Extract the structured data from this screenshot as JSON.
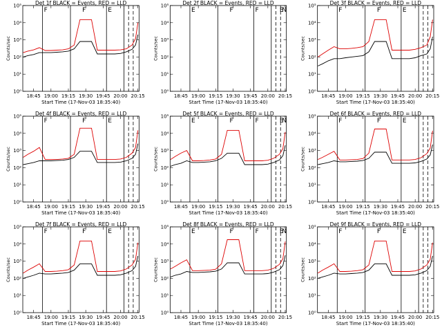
{
  "page": {
    "rows": 3,
    "cols": 3
  },
  "colors": {
    "events": "#000000",
    "lld": "#dd0000",
    "axis": "#000000",
    "background": "#ffffff"
  },
  "chart_data": [
    {
      "type": "line",
      "title": "Det 1f BLACK = Events, RED = LLD",
      "xlabel": "Start Time (17-Nov-03 18:35:40)",
      "ylabel": "Counts/sec",
      "yscale": "log",
      "ylim": [
        1,
        100000
      ],
      "ytick_labels": [
        "10⁰",
        "10¹",
        "10²",
        "10³",
        "10⁴",
        "10⁵"
      ],
      "xlim": [
        "18:35:40",
        "20:16:00"
      ],
      "xtick_labels": [
        "18:45",
        "19:00",
        "19:15",
        "19:30",
        "19:45",
        "20:00",
        "20:15"
      ],
      "markers": [
        "F",
        "F",
        "E"
      ],
      "x": [
        "18:36",
        "18:40",
        "18:45",
        "18:50",
        "18:55",
        "19:00",
        "19:05",
        "19:10",
        "19:15",
        "19:20",
        "19:25",
        "19:30",
        "19:35",
        "19:40",
        "19:45",
        "19:50",
        "19:55",
        "20:00",
        "20:05",
        "20:10",
        "20:13",
        "20:15"
      ],
      "series": [
        {
          "name": "Events",
          "values": [
            100,
            120,
            140,
            180,
            180,
            180,
            190,
            200,
            220,
            300,
            800,
            800,
            800,
            150,
            150,
            150,
            150,
            160,
            200,
            280,
            500,
            2000
          ]
        },
        {
          "name": "LLD",
          "values": [
            180,
            220,
            260,
            350,
            240,
            240,
            250,
            260,
            300,
            500,
            15000,
            15000,
            15000,
            250,
            250,
            250,
            250,
            260,
            300,
            500,
            1200,
            10000
          ]
        }
      ]
    },
    {
      "type": "line",
      "title": "Det 2f BLACK = Events, RED = LLD",
      "xlabel": "Start Time (17-Nov-03 18:35:40)",
      "ylabel": "Counts/sec",
      "yscale": "log",
      "ylim": [
        1,
        100000
      ],
      "ytick_labels": [
        "10⁰",
        "10¹",
        "10²",
        "10³",
        "10⁴",
        "10⁵"
      ],
      "xlim": [
        "18:35:40",
        "20:16:00"
      ],
      "xtick_labels": [
        "18:45",
        "19:00",
        "19:15",
        "19:30",
        "19:45",
        "20:00",
        "20:15"
      ],
      "markers": [
        "E",
        "F",
        "F",
        "E",
        "N"
      ],
      "x": [],
      "series": []
    },
    {
      "type": "line",
      "title": "Det 3f BLACK = Events, RED = LLD",
      "xlabel": "Start Time (17-Nov-03 18:35:40)",
      "ylabel": "Counts/sec",
      "yscale": "log",
      "ylim": [
        1,
        100000
      ],
      "ytick_labels": [
        "10⁰",
        "10¹",
        "10²",
        "10³",
        "10⁴",
        "10⁵"
      ],
      "xlim": [
        "18:35:40",
        "20:16:00"
      ],
      "xtick_labels": [
        "18:45",
        "19:00",
        "19:15",
        "19:30",
        "19:45",
        "20:00",
        "20:15"
      ],
      "markers": [
        "F",
        "F",
        "E"
      ],
      "x": [
        "18:36",
        "18:40",
        "18:45",
        "18:50",
        "18:55",
        "19:00",
        "19:05",
        "19:10",
        "19:15",
        "19:20",
        "19:25",
        "19:30",
        "19:35",
        "19:40",
        "19:45",
        "19:50",
        "19:55",
        "20:00",
        "20:05",
        "20:10",
        "20:13",
        "20:15"
      ],
      "series": [
        {
          "name": "Events",
          "values": [
            30,
            40,
            60,
            80,
            80,
            90,
            100,
            110,
            120,
            200,
            800,
            800,
            800,
            80,
            80,
            80,
            80,
            90,
            120,
            150,
            300,
            1500
          ]
        },
        {
          "name": "LLD",
          "values": [
            100,
            150,
            250,
            400,
            300,
            300,
            320,
            350,
            400,
            800,
            15000,
            15000,
            15000,
            250,
            250,
            250,
            250,
            280,
            350,
            500,
            1500,
            15000
          ]
        }
      ]
    },
    {
      "type": "line",
      "title": "Det 4f BLACK = Events, RED = LLD",
      "xlabel": "Start Time (17-Nov-03 18:35:40)",
      "ylabel": "Counts/sec",
      "yscale": "log",
      "ylim": [
        1,
        100000
      ],
      "ytick_labels": [
        "10⁰",
        "10¹",
        "10²",
        "10³",
        "10⁴",
        "10⁵"
      ],
      "xlim": [
        "18:35:40",
        "20:16:00"
      ],
      "xtick_labels": [
        "18:45",
        "19:00",
        "19:15",
        "19:30",
        "19:45",
        "20:00",
        "20:15"
      ],
      "markers": [
        "F",
        "F",
        "E"
      ],
      "x": [
        "18:36",
        "18:40",
        "18:45",
        "18:50",
        "18:55",
        "19:00",
        "19:05",
        "19:10",
        "19:15",
        "19:20",
        "19:25",
        "19:30",
        "19:35",
        "19:40",
        "19:45",
        "19:50",
        "19:55",
        "20:00",
        "20:05",
        "20:10",
        "20:13",
        "20:15"
      ],
      "series": [
        {
          "name": "Events",
          "values": [
            150,
            170,
            200,
            250,
            250,
            250,
            260,
            270,
            300,
            400,
            900,
            900,
            900,
            200,
            200,
            200,
            200,
            210,
            250,
            350,
            600,
            2500
          ]
        },
        {
          "name": "LLD",
          "values": [
            400,
            600,
            900,
            1500,
            300,
            300,
            300,
            320,
            350,
            600,
            20000,
            20000,
            20000,
            300,
            300,
            300,
            300,
            320,
            400,
            700,
            1500,
            15000
          ]
        }
      ]
    },
    {
      "type": "line",
      "title": "Det 5f BLACK = Events, RED = LLD",
      "xlabel": "Start Time (17-Nov-03 18:35:40)",
      "ylabel": "Counts/sec",
      "yscale": "log",
      "ylim": [
        1,
        100000
      ],
      "ytick_labels": [
        "10⁰",
        "10¹",
        "10²",
        "10³",
        "10⁴",
        "10⁵"
      ],
      "xlim": [
        "18:35:40",
        "20:16:00"
      ],
      "xtick_labels": [
        "18:45",
        "19:00",
        "19:15",
        "19:30",
        "19:45",
        "20:00",
        "20:15"
      ],
      "markers": [
        "E",
        "F",
        "F",
        "E",
        "N"
      ],
      "x": [
        "18:36",
        "18:40",
        "18:45",
        "18:50",
        "18:55",
        "19:00",
        "19:05",
        "19:10",
        "19:15",
        "19:20",
        "19:25",
        "19:30",
        "19:35",
        "19:40",
        "19:45",
        "19:50",
        "19:55",
        "20:00",
        "20:05",
        "20:10",
        "20:13",
        "20:15"
      ],
      "series": [
        {
          "name": "Events",
          "values": [
            120,
            150,
            180,
            250,
            200,
            200,
            210,
            220,
            250,
            350,
            700,
            700,
            700,
            150,
            150,
            150,
            150,
            160,
            200,
            280,
            500,
            2000
          ]
        },
        {
          "name": "LLD",
          "values": [
            300,
            450,
            700,
            1000,
            250,
            250,
            260,
            280,
            320,
            600,
            15000,
            15000,
            15000,
            250,
            250,
            250,
            250,
            270,
            350,
            600,
            1300,
            12000
          ]
        }
      ]
    },
    {
      "type": "line",
      "title": "Det 6f BLACK = Events, RED = LLD",
      "xlabel": "Start Time (17-Nov-03 18:35:40)",
      "ylabel": "Counts/sec",
      "yscale": "log",
      "ylim": [
        1,
        100000
      ],
      "ytick_labels": [
        "10⁰",
        "10¹",
        "10²",
        "10³",
        "10⁴",
        "10⁵"
      ],
      "xlim": [
        "18:35:40",
        "20:16:00"
      ],
      "xtick_labels": [
        "18:45",
        "19:00",
        "19:15",
        "19:30",
        "19:45",
        "20:00",
        "20:15"
      ],
      "markers": [
        "F",
        "F",
        "E"
      ],
      "x": [
        "18:36",
        "18:40",
        "18:45",
        "18:50",
        "18:55",
        "19:00",
        "19:05",
        "19:10",
        "19:15",
        "19:20",
        "19:25",
        "19:30",
        "19:35",
        "19:40",
        "19:45",
        "19:50",
        "19:55",
        "20:00",
        "20:05",
        "20:10",
        "20:13",
        "20:15"
      ],
      "series": [
        {
          "name": "Events",
          "values": [
            150,
            170,
            200,
            250,
            220,
            220,
            230,
            240,
            260,
            350,
            800,
            800,
            800,
            180,
            180,
            180,
            180,
            190,
            230,
            320,
            550,
            2200
          ]
        },
        {
          "name": "LLD",
          "values": [
            300,
            400,
            600,
            900,
            280,
            280,
            290,
            300,
            340,
            700,
            18000,
            18000,
            18000,
            280,
            280,
            280,
            280,
            300,
            380,
            650,
            1400,
            14000
          ]
        }
      ]
    },
    {
      "type": "line",
      "title": "Det 7f BLACK = Events, RED = LLD",
      "xlabel": "Start Time (17-Nov-03 18:35:40)",
      "ylabel": "Counts/sec",
      "yscale": "log",
      "ylim": [
        1,
        100000
      ],
      "ytick_labels": [
        "10⁰",
        "10¹",
        "10²",
        "10³",
        "10⁴",
        "10⁵"
      ],
      "xlim": [
        "18:35:40",
        "20:16:00"
      ],
      "xtick_labels": [
        "18:45",
        "19:00",
        "19:15",
        "19:30",
        "19:45",
        "20:00",
        "20:15"
      ],
      "markers": [
        "F",
        "F",
        "E"
      ],
      "x": [
        "18:36",
        "18:40",
        "18:45",
        "18:50",
        "18:55",
        "19:00",
        "19:05",
        "19:10",
        "19:15",
        "19:20",
        "19:25",
        "19:30",
        "19:35",
        "19:40",
        "19:45",
        "19:50",
        "19:55",
        "20:00",
        "20:05",
        "20:10",
        "20:13",
        "20:15"
      ],
      "series": [
        {
          "name": "Events",
          "values": [
            100,
            120,
            150,
            200,
            180,
            180,
            190,
            200,
            220,
            300,
            700,
            700,
            700,
            150,
            150,
            150,
            150,
            160,
            200,
            280,
            500,
            2000
          ]
        },
        {
          "name": "LLD",
          "values": [
            200,
            300,
            450,
            700,
            250,
            250,
            260,
            280,
            320,
            600,
            15000,
            15000,
            15000,
            250,
            250,
            250,
            250,
            270,
            350,
            600,
            1300,
            12000
          ]
        }
      ]
    },
    {
      "type": "line",
      "title": "Det 8f BLACK = Events, RED = LLD",
      "xlabel": "Start Time (17-Nov-03 18:35:40)",
      "ylabel": "Counts/sec",
      "yscale": "log",
      "ylim": [
        1,
        100000
      ],
      "ytick_labels": [
        "10⁰",
        "10¹",
        "10²",
        "10³",
        "10⁴",
        "10⁵"
      ],
      "xlim": [
        "18:35:40",
        "20:16:00"
      ],
      "xtick_labels": [
        "18:45",
        "19:00",
        "19:15",
        "19:30",
        "19:45",
        "20:00",
        "20:15"
      ],
      "markers": [
        "E",
        "F",
        "F",
        "E",
        "N"
      ],
      "x": [
        "18:36",
        "18:40",
        "18:45",
        "18:50",
        "18:55",
        "19:00",
        "19:05",
        "19:10",
        "19:15",
        "19:20",
        "19:25",
        "19:30",
        "19:35",
        "19:40",
        "19:45",
        "19:50",
        "19:55",
        "20:00",
        "20:05",
        "20:10",
        "20:13",
        "20:15"
      ],
      "series": [
        {
          "name": "Events",
          "values": [
            120,
            150,
            180,
            250,
            220,
            220,
            230,
            240,
            260,
            350,
            800,
            800,
            800,
            180,
            180,
            180,
            180,
            190,
            230,
            320,
            550,
            2200
          ]
        },
        {
          "name": "LLD",
          "values": [
            350,
            500,
            800,
            1200,
            280,
            280,
            290,
            300,
            340,
            700,
            18000,
            18000,
            18000,
            280,
            280,
            280,
            280,
            300,
            380,
            650,
            1400,
            14000
          ]
        }
      ]
    },
    {
      "type": "line",
      "title": "Det 9f BLACK = Events, RED = LLD",
      "xlabel": "Start Time (17-Nov-03 18:35:40)",
      "ylabel": "Counts/sec",
      "yscale": "log",
      "ylim": [
        1,
        100000
      ],
      "ytick_labels": [
        "10⁰",
        "10¹",
        "10²",
        "10³",
        "10⁴",
        "10⁵"
      ],
      "xlim": [
        "18:35:40",
        "20:16:00"
      ],
      "xtick_labels": [
        "18:45",
        "19:00",
        "19:15",
        "19:30",
        "19:45",
        "20:00",
        "20:15"
      ],
      "markers": [
        "F",
        "F",
        "E"
      ],
      "x": [
        "18:36",
        "18:40",
        "18:45",
        "18:50",
        "18:55",
        "19:00",
        "19:05",
        "19:10",
        "19:15",
        "19:20",
        "19:25",
        "19:30",
        "19:35",
        "19:40",
        "19:45",
        "19:50",
        "19:55",
        "20:00",
        "20:05",
        "20:10",
        "20:13",
        "20:15"
      ],
      "series": [
        {
          "name": "Events",
          "values": [
            100,
            120,
            150,
            200,
            180,
            180,
            190,
            200,
            220,
            300,
            700,
            700,
            700,
            150,
            150,
            150,
            150,
            160,
            200,
            280,
            500,
            2000
          ]
        },
        {
          "name": "LLD",
          "values": [
            200,
            300,
            450,
            700,
            250,
            250,
            260,
            280,
            320,
            600,
            15000,
            15000,
            15000,
            250,
            250,
            250,
            250,
            270,
            350,
            600,
            1300,
            12000
          ]
        }
      ]
    }
  ]
}
